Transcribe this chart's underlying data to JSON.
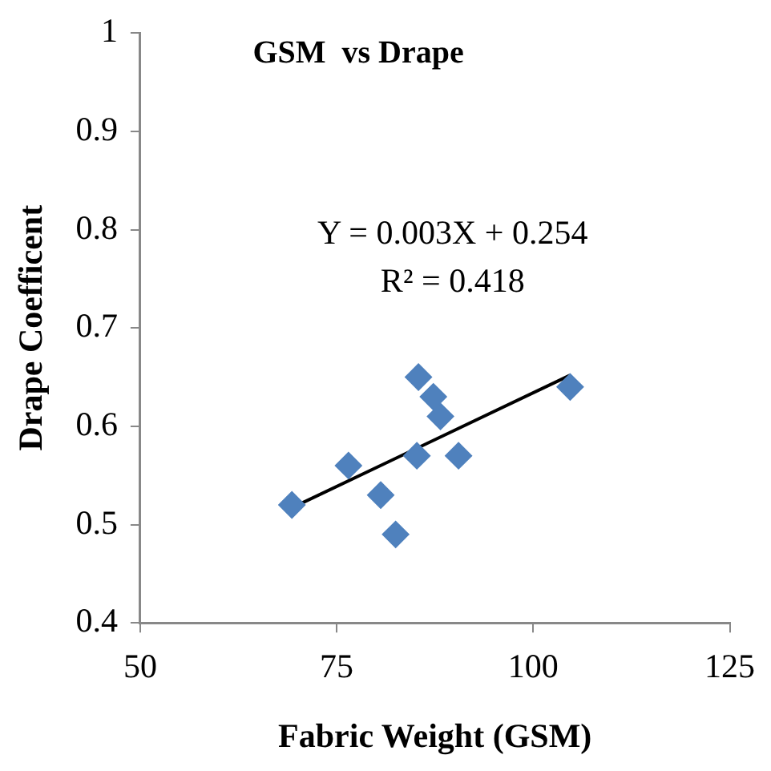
{
  "chart_data": {
    "type": "scatter",
    "title": "GSM  vs Drape",
    "xlabel": "Fabric Weight (GSM)",
    "ylabel": "Drape Coefficent",
    "annotations": [
      "Y = 0.003X + 0.254",
      "R² = 0.418"
    ],
    "series": [
      {
        "marker": "diamond",
        "color": "#4f81bd",
        "x": [
          69.3,
          76.5,
          80.6,
          82.5,
          85.4,
          85.2,
          87.3,
          88.2,
          90.5,
          104.7
        ],
        "values": [
          0.52,
          0.56,
          0.53,
          0.49,
          0.65,
          0.57,
          0.63,
          0.61,
          0.57,
          0.64
        ]
      },
      {
        "type": "line",
        "marker": "none",
        "color": "#000000",
        "x": [
          69.3,
          104.7
        ],
        "values": [
          0.517,
          0.652
        ]
      }
    ],
    "xlim": [
      50,
      125
    ],
    "xticks": [
      50,
      75,
      100,
      125
    ],
    "ylim": [
      0.4,
      1
    ],
    "yticks": [
      0.4,
      0.5,
      0.6,
      0.7,
      0.8,
      0.9,
      1
    ],
    "grid": false,
    "legend": false
  }
}
